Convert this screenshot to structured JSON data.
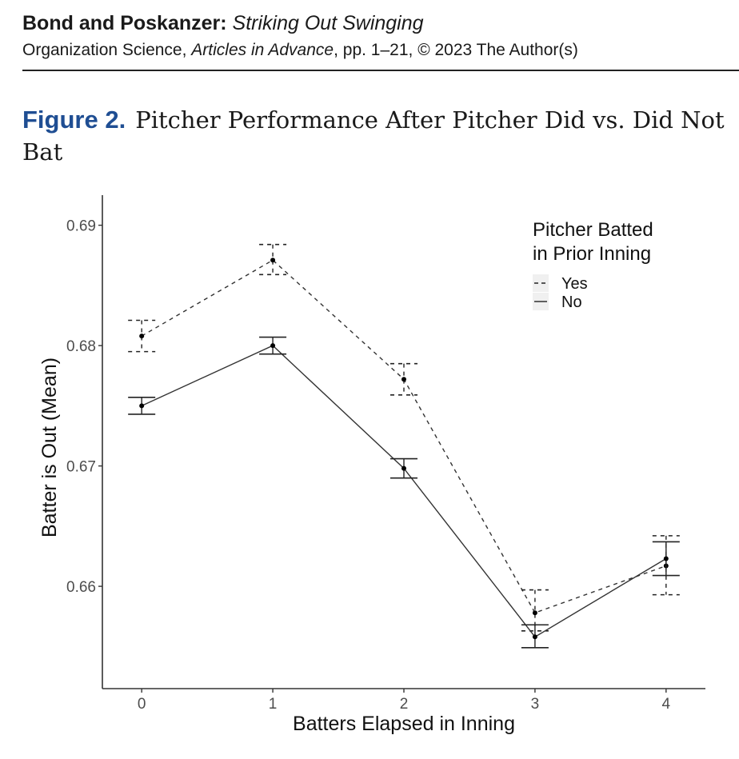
{
  "header": {
    "authors": "Bond and Poskanzer:",
    "article_title": "Striking Out Swinging",
    "journal": "Organization Science,",
    "journal_status": "Articles in Advance",
    "pages": ", pp. 1–21, © 2023 The Author(s)"
  },
  "figure": {
    "label": "Figure 2.",
    "caption": "Pitcher Performance After Pitcher Did vs. Did Not Bat"
  },
  "chart_data": {
    "type": "line",
    "title": "",
    "xlabel": "Batters Elapsed in Inning",
    "ylabel": "Batter is Out (Mean)",
    "x": [
      0,
      1,
      2,
      3,
      4
    ],
    "x_ticks": [
      "0",
      "1",
      "2",
      "3",
      "4"
    ],
    "y_ticks": [
      "0.66",
      "0.67",
      "0.68",
      "0.69"
    ],
    "y_tick_values": [
      0.66,
      0.67,
      0.68,
      0.69
    ],
    "xlim": [
      -0.3,
      4.3
    ],
    "ylim": [
      0.6515,
      0.6925
    ],
    "grid": false,
    "legend": {
      "title_line1": "Pitcher Batted",
      "title_line2": "in Prior Inning",
      "placement": "top-right"
    },
    "series": [
      {
        "name": "Yes",
        "line_style": "dashed",
        "values": [
          0.6808,
          0.6871,
          0.6772,
          0.6578,
          0.6617
        ],
        "ci_low": [
          0.6795,
          0.6859,
          0.6759,
          0.6563,
          0.6593
        ],
        "ci_high": [
          0.6821,
          0.6884,
          0.6785,
          0.6597,
          0.6642
        ]
      },
      {
        "name": "No",
        "line_style": "solid",
        "values": [
          0.675,
          0.68,
          0.6698,
          0.6558,
          0.6623
        ],
        "ci_low": [
          0.6743,
          0.6793,
          0.669,
          0.6549,
          0.6609
        ],
        "ci_high": [
          0.6757,
          0.6807,
          0.6706,
          0.6568,
          0.6637
        ]
      }
    ]
  }
}
